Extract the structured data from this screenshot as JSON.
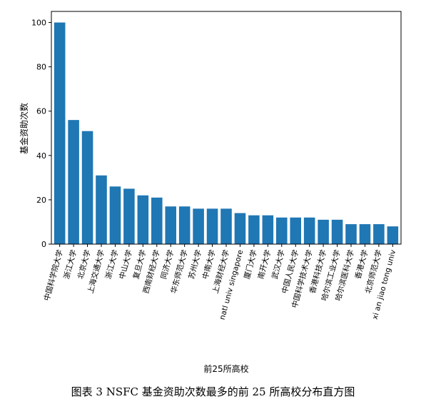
{
  "figure": {
    "caption": "图表  3 NSFC 基金资助次数最多的前 25 所高校分布直方图"
  },
  "chart_data": {
    "type": "bar",
    "title": "",
    "xlabel": "前25所高校",
    "ylabel": "基金资助次数",
    "ylim": [
      0,
      105
    ],
    "yticks": [
      0,
      20,
      40,
      60,
      80,
      100
    ],
    "grid": false,
    "bar_color": "#1f77b4",
    "categories": [
      "中国科学院大学",
      "浙江大学",
      "北京大学",
      "上海交通大学",
      "浙江大学",
      "中山大学",
      "复旦大学",
      "西南财经大学",
      "同济大学",
      "华东师范大学",
      "苏州大学",
      "中南大学",
      "上海财经大学",
      "natl univ singapore",
      "厦门大学",
      "南开大学",
      "武汉大学",
      "中国人民大学",
      "中国科学技术大学",
      "香港科技大学",
      "哈尔滨工业大学",
      "哈尔滨医科大学",
      "香港大学",
      "北京师范大学",
      "xi an jiao tong univ"
    ],
    "values": [
      100,
      56,
      51,
      31,
      26,
      25,
      22,
      21,
      17,
      17,
      16,
      16,
      16,
      14,
      13,
      13,
      12,
      12,
      12,
      11,
      11,
      9,
      9,
      9,
      8
    ]
  }
}
